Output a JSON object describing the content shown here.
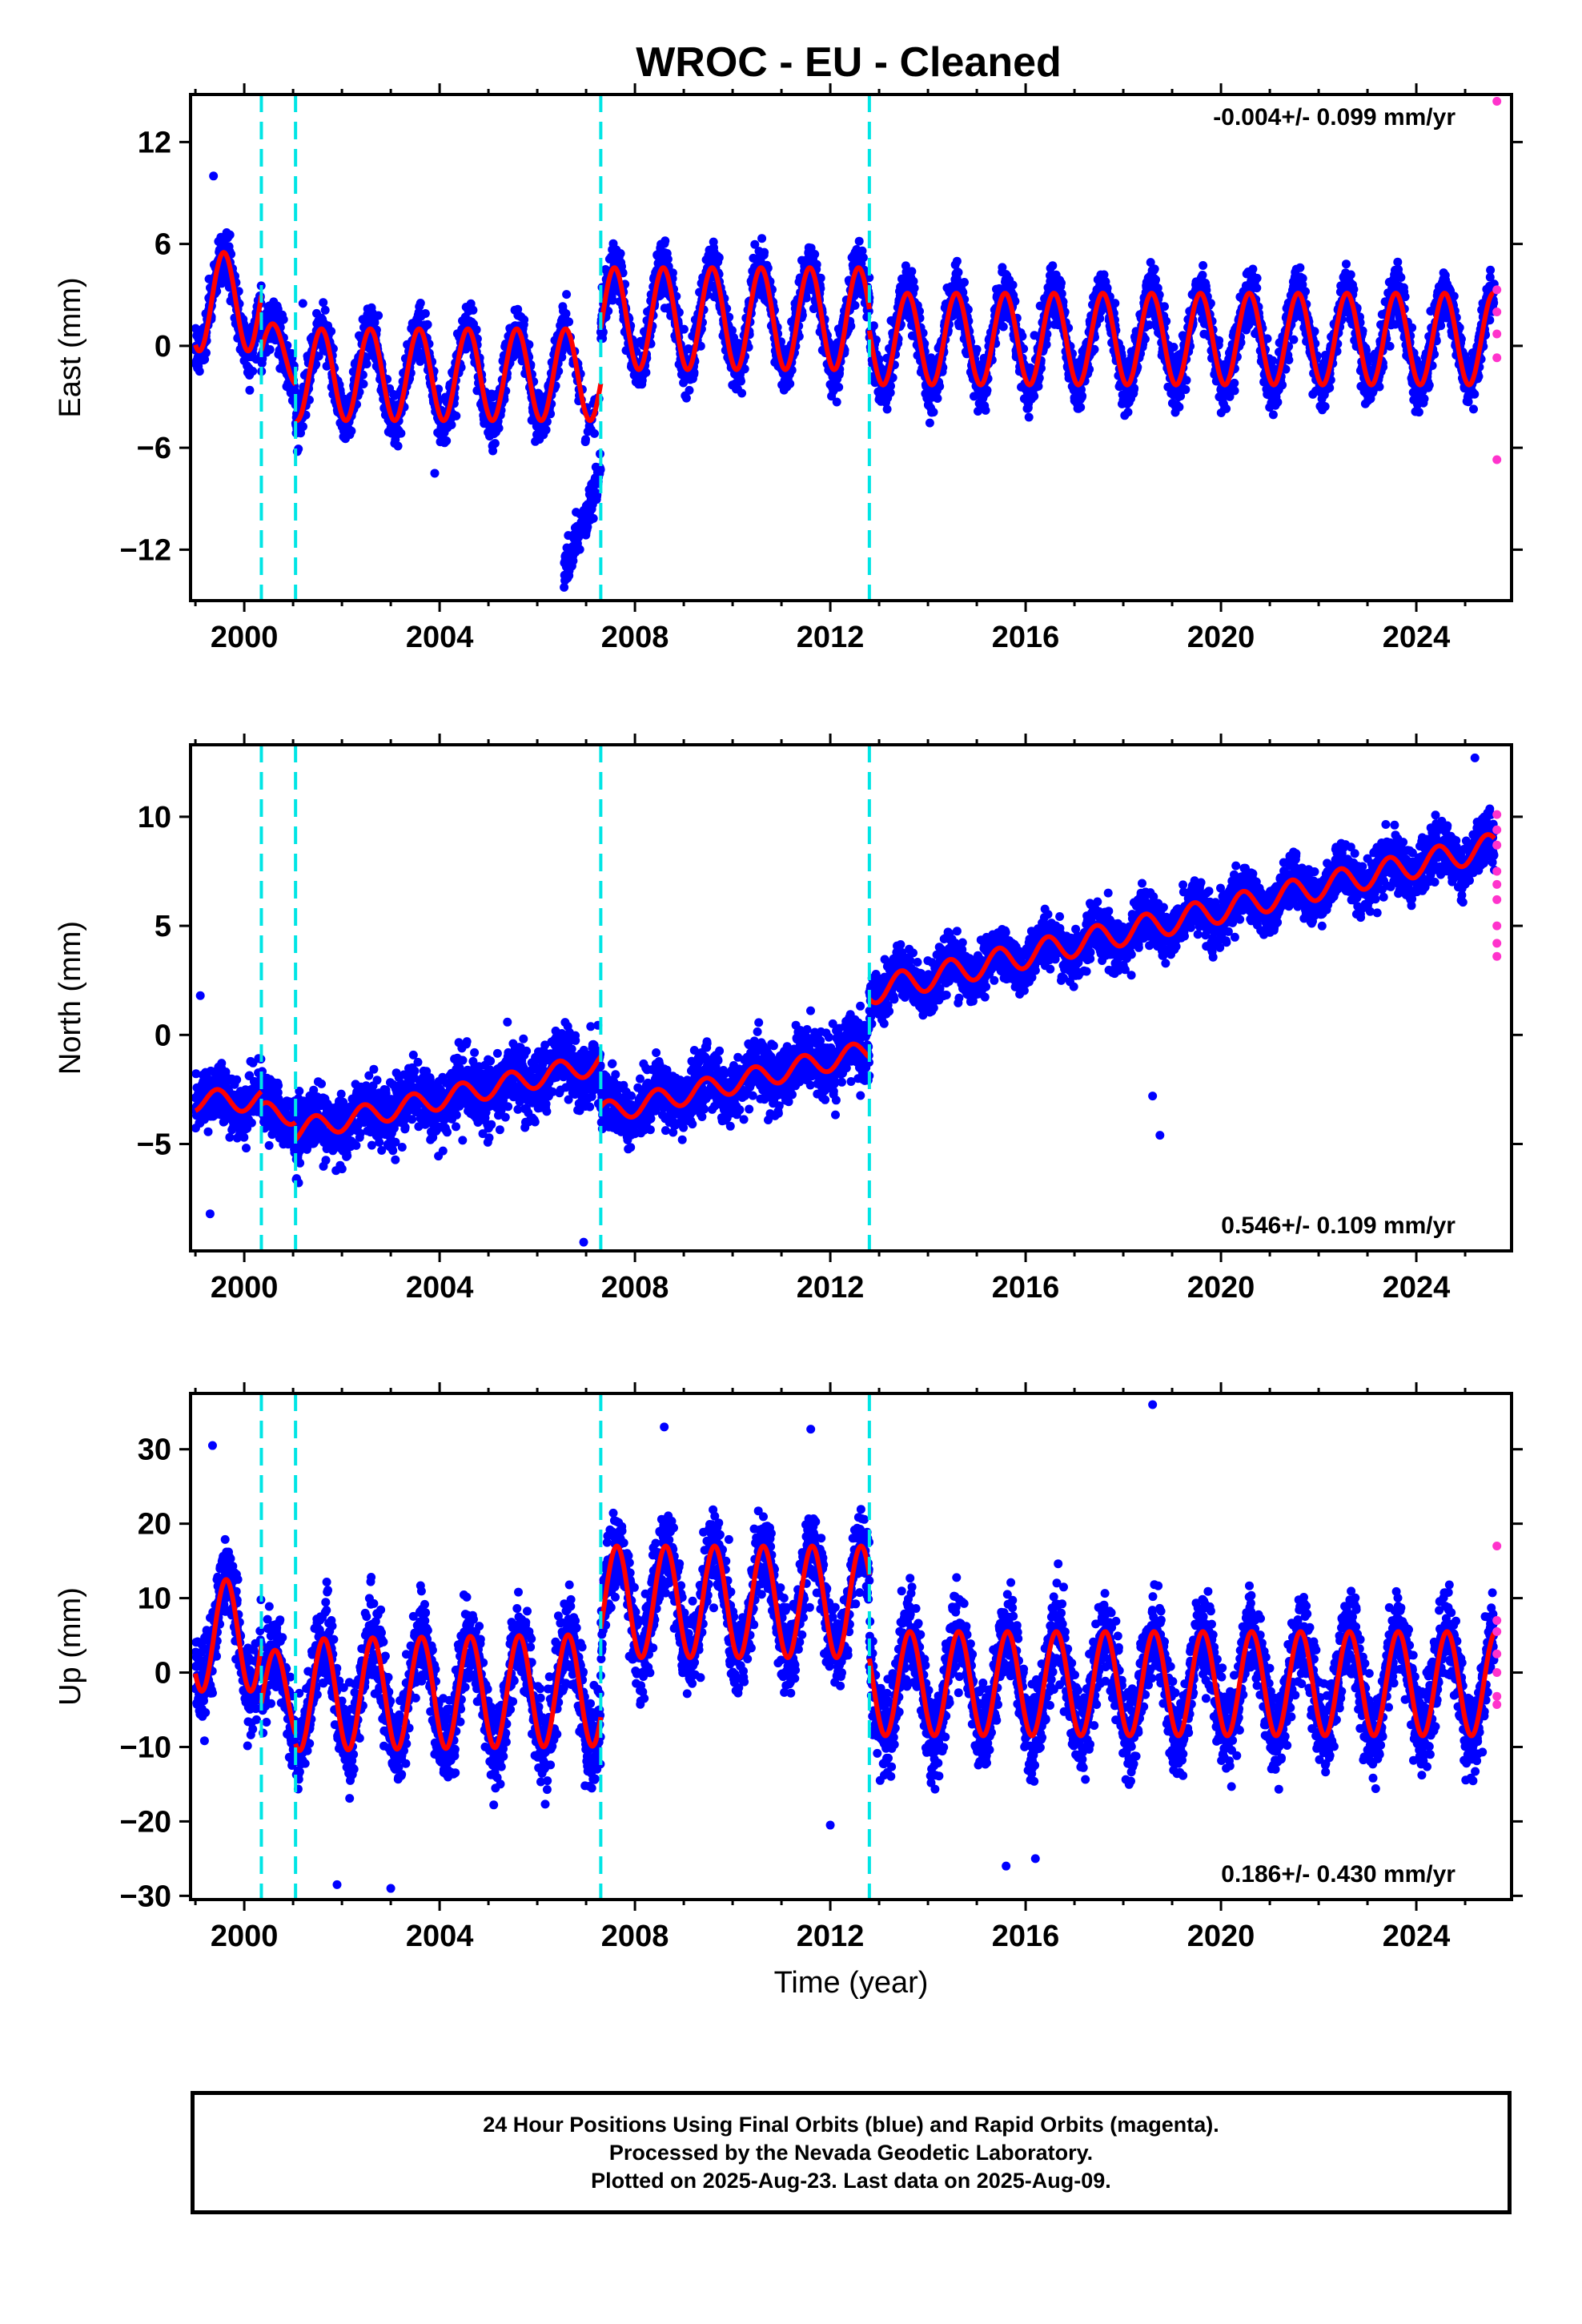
{
  "title": "WROC  - EU - Cleaned",
  "caption": {
    "line1": "24 Hour Positions Using Final Orbits (blue) and Rapid Orbits (magenta).",
    "line2": "Processed by the Nevada Geodetic Laboratory.",
    "line3": "Plotted on 2025-Aug-23. Last data on 2025-Aug-09."
  },
  "colors": {
    "final_orbits": "#0000ff",
    "rapid_orbits": "#ff33cc",
    "model_fit": "#ff0000",
    "equipment_change": "#00e5e5"
  },
  "chart_data": [
    {
      "type": "scatter",
      "panel": "east",
      "ylabel": "East (mm)",
      "xlabel": "",
      "xlim": [
        1998.9,
        2025.95
      ],
      "ylim": [
        -15.0,
        14.8
      ],
      "x_ticks": [
        2000,
        2004,
        2008,
        2012,
        2016,
        2020,
        2024
      ],
      "y_ticks": [
        -12,
        -6,
        0,
        6,
        12
      ],
      "y_tick_labels": [
        "−12",
        "−6",
        "0",
        "6",
        "12"
      ],
      "rate_label": "-0.004+/- 0.099 mm/yr",
      "rate_position": "top-right",
      "breaks": [
        2000.35,
        2001.05,
        2007.3,
        2012.8
      ],
      "segments": [
        {
          "start": 1999.0,
          "end": 2000.35,
          "offset": 2.6,
          "slope": 0.0,
          "annual": 2.9,
          "phase": 0.33,
          "scatter": 1.4
        },
        {
          "start": 2000.35,
          "end": 2001.05,
          "offset": -0.5,
          "slope": 0.0,
          "annual": 1.8,
          "phase": 0.33,
          "scatter": 1.4
        },
        {
          "start": 2001.05,
          "end": 2007.3,
          "offset": -1.7,
          "slope": 0.0,
          "annual": 2.7,
          "phase": 0.33,
          "scatter": 1.4
        },
        {
          "start": 2007.3,
          "end": 2012.8,
          "offset": 1.6,
          "slope": 0.0,
          "annual": 3.0,
          "phase": 0.33,
          "scatter": 1.5
        },
        {
          "start": 2012.8,
          "end": 2025.6,
          "offset": 0.4,
          "slope": 0.0,
          "annual": 2.7,
          "phase": 0.33,
          "scatter": 1.5
        }
      ],
      "outlier_cluster": {
        "start": 2006.55,
        "end": 2007.3,
        "from": -13.5,
        "to": -7.5,
        "scatter": 1.2
      },
      "extra_points": [
        [
          1999.37,
          10.0
        ],
        [
          2001.2,
          2.5
        ],
        [
          2003.9,
          -7.5
        ]
      ],
      "rapid_points": [
        [
          2025.65,
          14.4
        ],
        [
          2025.65,
          3.3
        ],
        [
          2025.65,
          2.0
        ],
        [
          2025.65,
          0.7
        ],
        [
          2025.65,
          -0.7
        ],
        [
          2025.65,
          -6.7
        ]
      ]
    },
    {
      "type": "scatter",
      "panel": "north",
      "ylabel": "North (mm)",
      "xlabel": "",
      "xlim": [
        1998.9,
        2025.95
      ],
      "ylim": [
        -9.9,
        13.3
      ],
      "x_ticks": [
        2000,
        2004,
        2008,
        2012,
        2016,
        2020,
        2024
      ],
      "y_ticks": [
        -5,
        0,
        5,
        10
      ],
      "y_tick_labels": [
        "−5",
        "0",
        "5",
        "10"
      ],
      "rate_label": "0.546+/- 0.109 mm/yr",
      "rate_position": "bottom-right",
      "breaks": [
        2000.35,
        2001.05,
        2007.3,
        2012.8
      ],
      "segments": [
        {
          "start": 1999.0,
          "end": 2000.35,
          "offset": -3.0,
          "slope": 0.0,
          "annual": 0.5,
          "phase": 0.2,
          "scatter": 1.2
        },
        {
          "start": 2000.35,
          "end": 2001.05,
          "offset": -3.6,
          "slope": 0.0,
          "annual": 0.5,
          "phase": 0.2,
          "scatter": 1.2
        },
        {
          "start": 2001.05,
          "end": 2007.3,
          "offset": -4.4,
          "slope": 0.5,
          "annual": 0.5,
          "phase": 0.2,
          "scatter": 1.4
        },
        {
          "start": 2007.3,
          "end": 2012.8,
          "offset": -3.6,
          "slope": 0.52,
          "annual": 0.5,
          "phase": 0.2,
          "scatter": 1.3
        },
        {
          "start": 2012.8,
          "end": 2025.6,
          "offset": 2.0,
          "slope": 0.52,
          "annual": 0.6,
          "phase": 0.2,
          "scatter": 1.1
        }
      ],
      "extra_points": [
        [
          2006.95,
          -9.5
        ],
        [
          2018.6,
          -2.8
        ],
        [
          2018.75,
          -4.6
        ],
        [
          2025.2,
          12.7
        ],
        [
          1999.1,
          1.8
        ],
        [
          1999.3,
          -8.2
        ]
      ],
      "rapid_points": [
        [
          2025.65,
          10.1
        ],
        [
          2025.65,
          9.4
        ],
        [
          2025.65,
          8.7
        ],
        [
          2025.65,
          7.5
        ],
        [
          2025.65,
          6.9
        ],
        [
          2025.65,
          6.2
        ],
        [
          2025.65,
          5.0
        ],
        [
          2025.65,
          4.2
        ],
        [
          2025.65,
          3.6
        ]
      ]
    },
    {
      "type": "scatter",
      "panel": "up",
      "ylabel": "Up (mm)",
      "xlabel": "Time (year)",
      "xlim": [
        1998.9,
        2025.95
      ],
      "ylim": [
        -30.5,
        37.5
      ],
      "x_ticks": [
        2000,
        2004,
        2008,
        2012,
        2016,
        2020,
        2024
      ],
      "y_ticks": [
        -30,
        -20,
        -10,
        0,
        10,
        20,
        30
      ],
      "y_tick_labels": [
        "−30",
        "−20",
        "−10",
        "0",
        "10",
        "20",
        "30"
      ],
      "rate_label": "0.186+/- 0.430 mm/yr",
      "rate_position": "bottom-right",
      "breaks": [
        2000.35,
        2001.05,
        2007.3,
        2012.8
      ],
      "segments": [
        {
          "start": 1999.0,
          "end": 2000.35,
          "offset": 5.0,
          "slope": 0.0,
          "annual": 7.5,
          "phase": 0.38,
          "scatter": 5.0
        },
        {
          "start": 2000.35,
          "end": 2001.05,
          "offset": -3.0,
          "slope": 0.0,
          "annual": 6.0,
          "phase": 0.38,
          "scatter": 5.0
        },
        {
          "start": 2001.05,
          "end": 2007.3,
          "offset": -3.0,
          "slope": 0.1,
          "annual": 7.5,
          "phase": 0.38,
          "scatter": 5.5
        },
        {
          "start": 2007.3,
          "end": 2012.8,
          "offset": 9.5,
          "slope": 0.0,
          "annual": 7.5,
          "phase": 0.38,
          "scatter": 5.5
        },
        {
          "start": 2012.8,
          "end": 2025.6,
          "offset": -1.5,
          "slope": 0.0,
          "annual": 7.0,
          "phase": 0.38,
          "scatter": 5.5
        }
      ],
      "extra_points": [
        [
          1999.35,
          30.5
        ],
        [
          2008.6,
          33.0
        ],
        [
          2011.6,
          32.7
        ],
        [
          2018.6,
          36.0
        ],
        [
          2003.0,
          -29.0
        ],
        [
          2001.9,
          -28.5
        ],
        [
          2012.0,
          -20.5
        ],
        [
          2015.6,
          -26.0
        ],
        [
          2016.2,
          -25.0
        ]
      ],
      "rapid_points": [
        [
          2025.65,
          17.0
        ],
        [
          2025.65,
          7.0
        ],
        [
          2025.65,
          5.5
        ],
        [
          2025.65,
          2.5
        ],
        [
          2025.65,
          0.0
        ],
        [
          2025.65,
          -3.2
        ],
        [
          2025.65,
          -4.3
        ]
      ]
    }
  ]
}
